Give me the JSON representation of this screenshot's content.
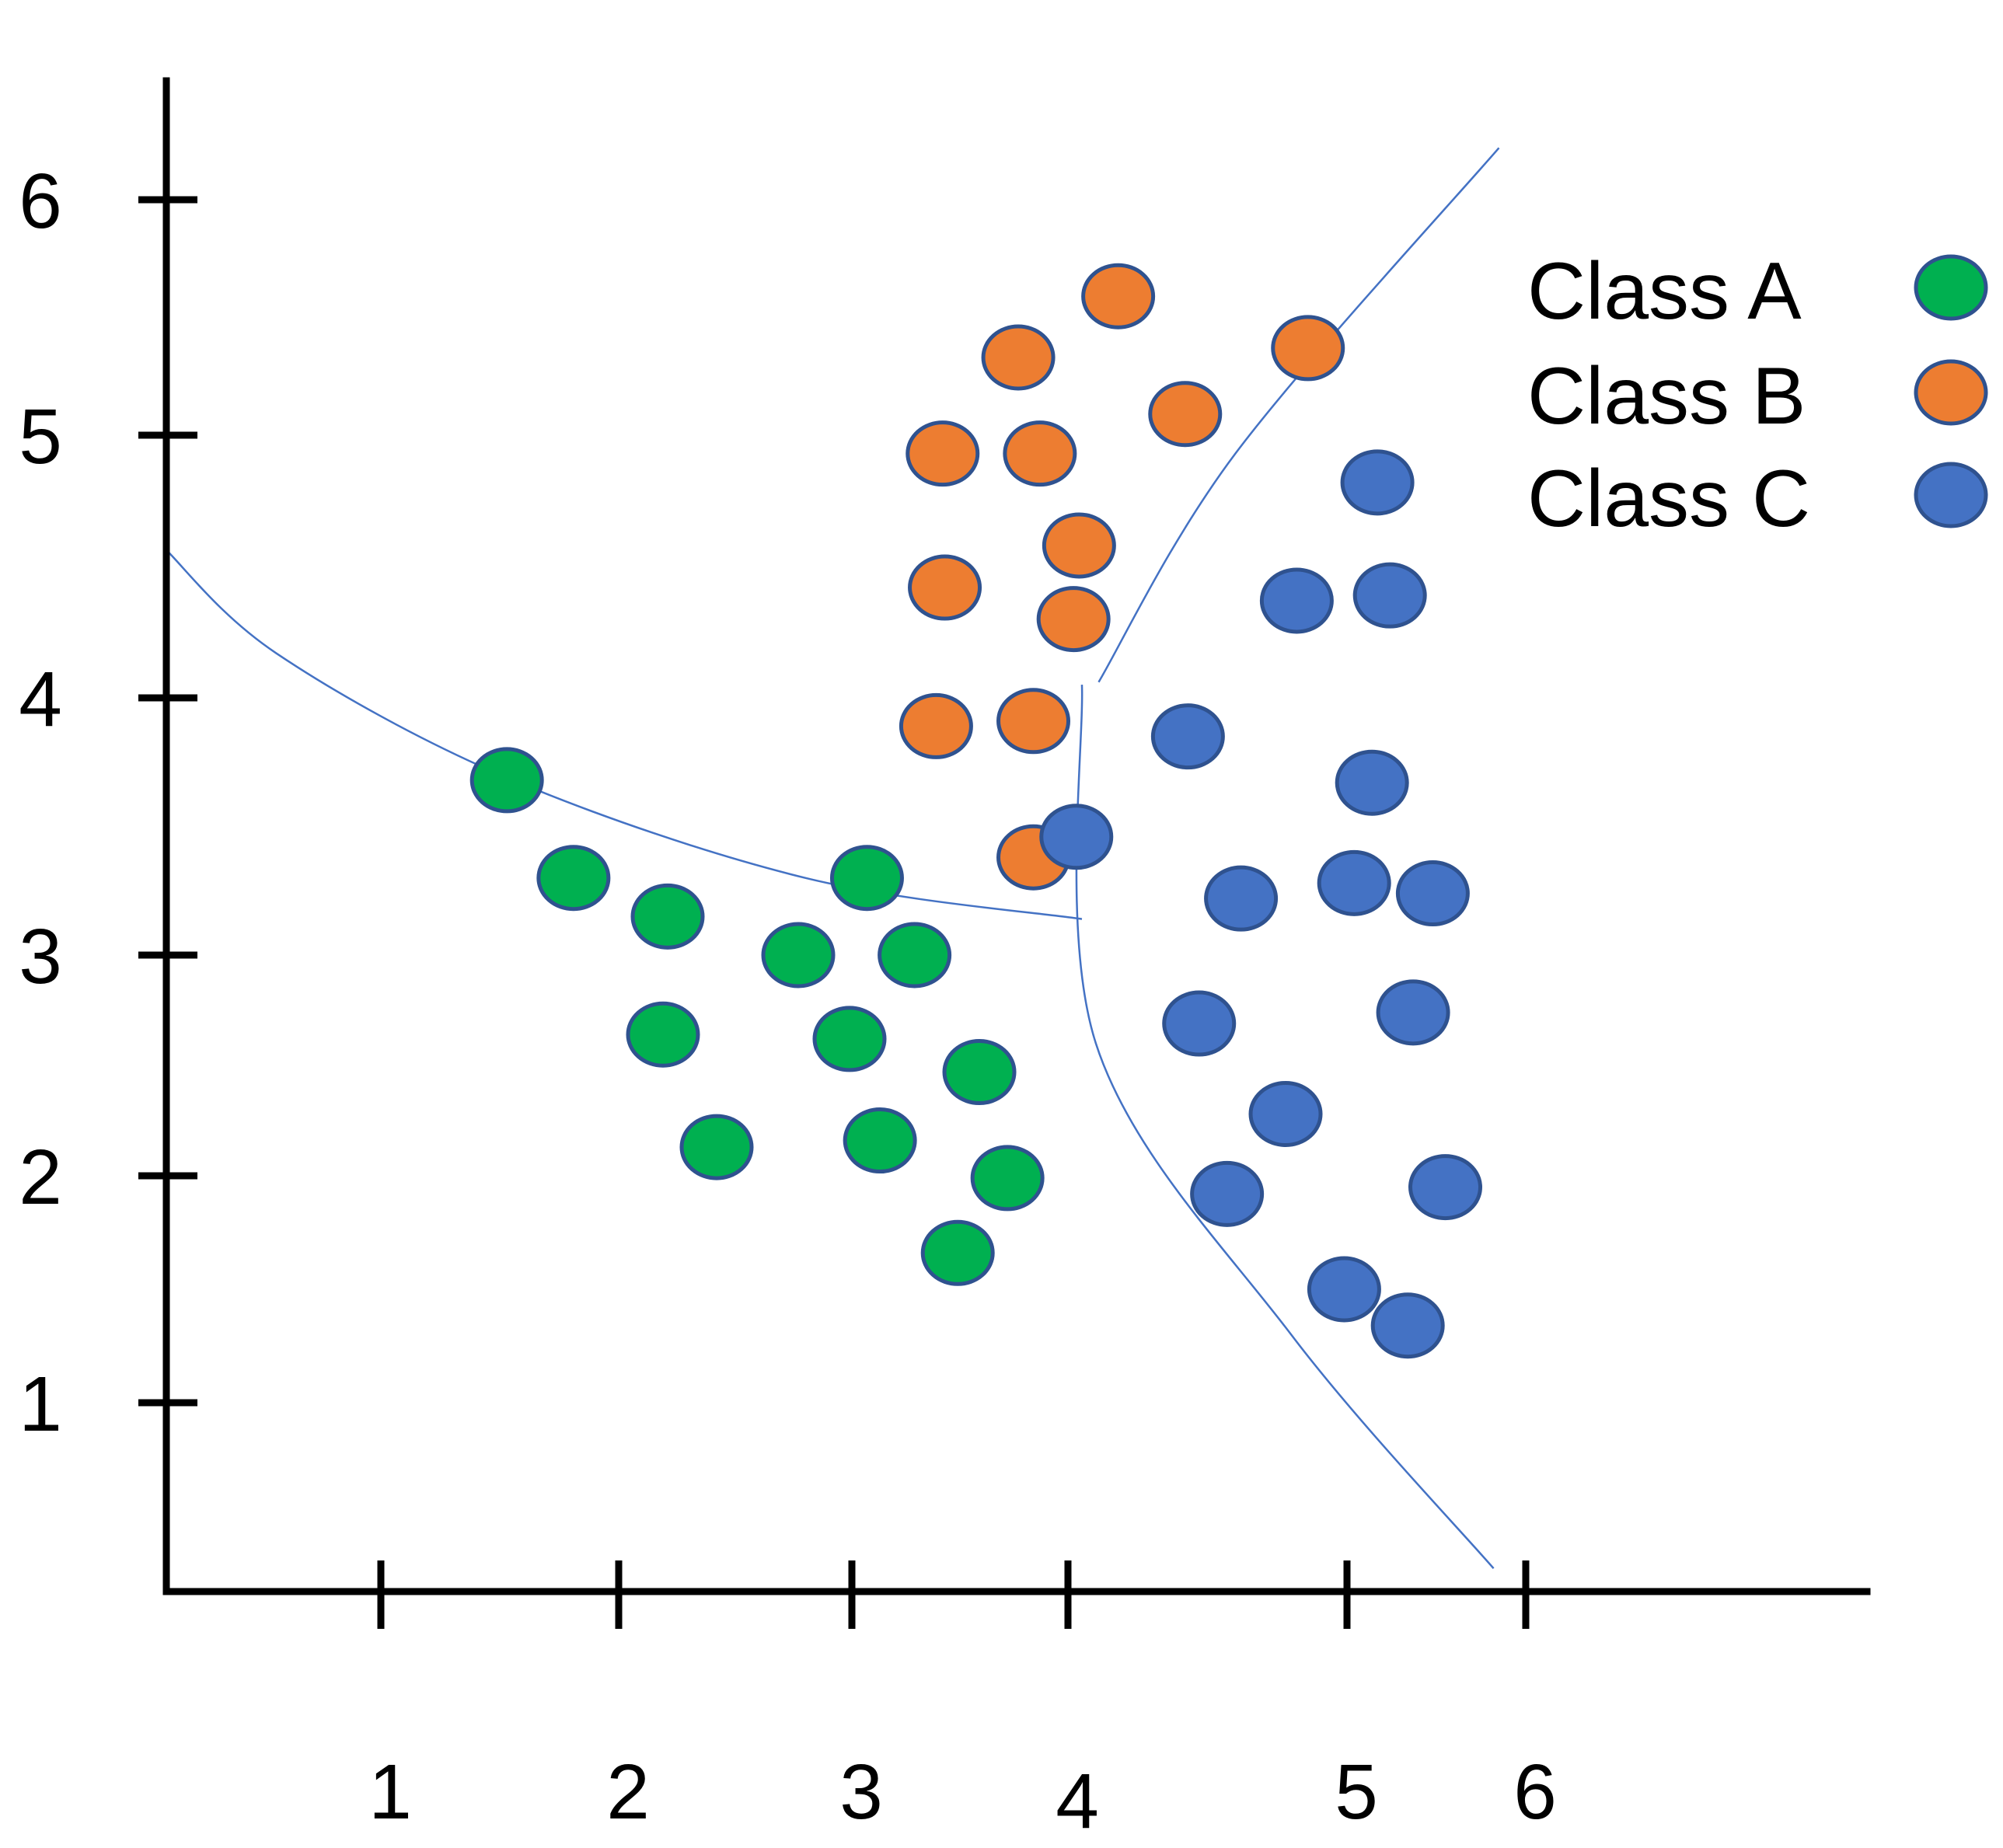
{
  "chart_data": {
    "type": "scatter",
    "title": "",
    "xlabel": "",
    "ylabel": "",
    "x_ticks": [
      "1",
      "2",
      "3",
      "4",
      "5",
      "6"
    ],
    "y_ticks": [
      "1",
      "2",
      "3",
      "4",
      "5",
      "6"
    ],
    "grid": false,
    "legend_position": "top-right",
    "series": [
      {
        "name": "Class  A",
        "color": "#00B050",
        "stroke": "#2F528F",
        "points": [
          [
            1.53,
            3.68
          ],
          [
            1.81,
            3.3
          ],
          [
            2.21,
            3.15
          ],
          [
            2.77,
            3.0
          ],
          [
            3.07,
            3.3
          ],
          [
            3.29,
            3.0
          ],
          [
            2.19,
            2.64
          ],
          [
            2.99,
            2.62
          ],
          [
            3.59,
            2.47
          ],
          [
            2.42,
            2.13
          ],
          [
            3.13,
            2.16
          ],
          [
            3.72,
            1.99
          ],
          [
            3.49,
            1.66
          ]
        ]
      },
      {
        "name": "Class  B",
        "color": "#ED7D31",
        "stroke": "#2F528F",
        "points": [
          [
            4.18,
            5.59
          ],
          [
            3.77,
            5.33
          ],
          [
            4.86,
            5.37
          ],
          [
            4.42,
            5.09
          ],
          [
            3.42,
            4.93
          ],
          [
            3.87,
            4.93
          ],
          [
            4.04,
            4.58
          ],
          [
            3.43,
            4.42
          ],
          [
            4.02,
            4.3
          ],
          [
            3.39,
            3.89
          ],
          [
            3.84,
            3.91
          ],
          [
            3.84,
            3.38
          ]
        ]
      },
      {
        "name": "Class  C",
        "color": "#4472C4",
        "stroke": "#2F528F",
        "points": [
          [
            5.17,
            4.82
          ],
          [
            4.82,
            4.37
          ],
          [
            5.24,
            4.39
          ],
          [
            4.43,
            3.85
          ],
          [
            5.14,
            3.67
          ],
          [
            4.03,
            3.46
          ],
          [
            4.62,
            3.22
          ],
          [
            5.04,
            3.28
          ],
          [
            5.48,
            3.24
          ],
          [
            4.47,
            2.69
          ],
          [
            5.37,
            2.74
          ],
          [
            4.78,
            2.28
          ],
          [
            4.57,
            1.92
          ],
          [
            5.55,
            1.95
          ],
          [
            4.99,
            1.5
          ],
          [
            5.34,
            1.34
          ]
        ]
      }
    ],
    "decision_boundaries": [
      [
        [
          0.09,
          4.57
        ],
        [
          0.56,
          4.17
        ],
        [
          1.53,
          3.69
        ],
        [
          2.8,
          3.3
        ],
        [
          4.05,
          3.14
        ]
      ],
      [
        [
          4.11,
          4.06
        ],
        [
          4.6,
          4.93
        ],
        [
          5.85,
          6.22
        ]
      ],
      [
        [
          4.05,
          4.05
        ],
        [
          4.1,
          2.6
        ],
        [
          4.8,
          1.3
        ],
        [
          5.82,
          0.27
        ]
      ]
    ]
  }
}
